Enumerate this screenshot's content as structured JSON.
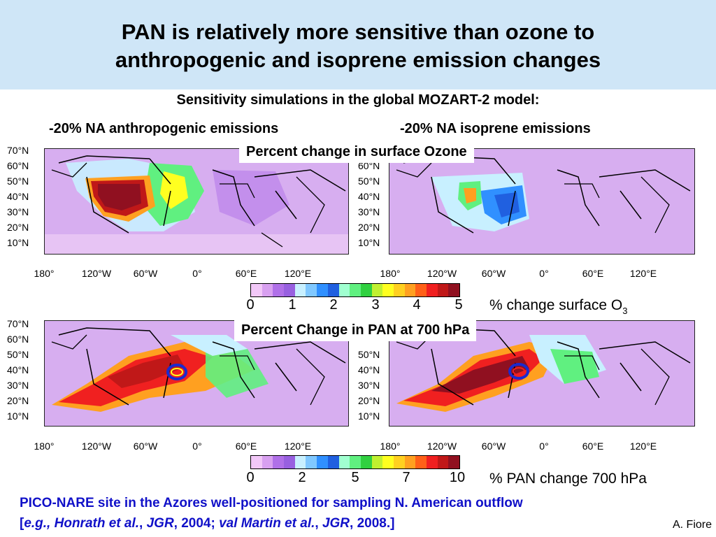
{
  "title_line1": "PAN is relatively more sensitive than ozone to",
  "title_line2": "anthropogenic  and isoprene emission changes",
  "subtitle": "Sensitivity simulations in the global MOZART-2 model:",
  "left_heading": "-20% NA anthropogenic emissions",
  "right_heading": "-20% NA isoprene emissions",
  "ozone_banner": "Percent change in surface Ozone",
  "pan_banner": "Percent Change in PAN at 700 hPa",
  "lat_labels": [
    "70°N",
    "60°N",
    "50°N",
    "40°N",
    "30°N",
    "20°N",
    "10°N"
  ],
  "lon_labels": [
    "180°",
    "120°W",
    "60°W",
    "0°",
    "60°E",
    "120°E"
  ],
  "ozone_colorbar": {
    "ticks": [
      "0",
      "1",
      "2",
      "3",
      "4",
      "5"
    ],
    "unit": "% change surface O",
    "unit_sub": "3"
  },
  "pan_colorbar": {
    "ticks": [
      "0",
      "2",
      "5",
      "7",
      "10"
    ],
    "unit": "% PAN change 700 hPa"
  },
  "colors": [
    "#f2c8f8",
    "#d8a0f0",
    "#b070e8",
    "#9860e0",
    "#c8f0ff",
    "#80c8ff",
    "#3090ff",
    "#2060e0",
    "#a0ffd0",
    "#60f080",
    "#30d040",
    "#c0f030",
    "#ffff20",
    "#ffd020",
    "#ffa020",
    "#ff6018",
    "#f02020",
    "#c01818",
    "#901020"
  ],
  "footnote_line1": "PICO-NARE site in the Azores well-positioned for sampling N. American outflow",
  "footnote_cite": {
    "open": "[",
    "a1": "e.g., Honrath et al.",
    "sep1": ", ",
    "j1": "JGR",
    "y1": ", 2004; ",
    "a2": "val Martin et al.",
    "sep2": ", ",
    "j2": "JGR",
    "y2": ", 2008.]"
  },
  "credit": "A. Fiore"
}
